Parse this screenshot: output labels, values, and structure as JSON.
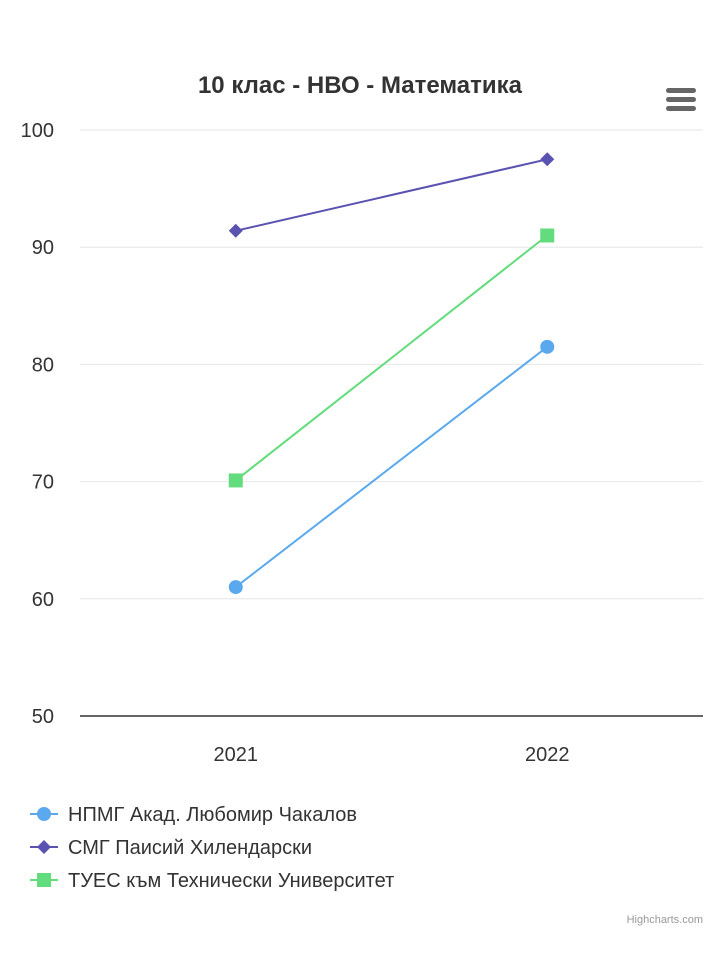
{
  "chart_data": {
    "type": "line",
    "title": "10 клас - НВО - Математика",
    "categories": [
      "2021",
      "2022"
    ],
    "ylim": [
      50,
      100
    ],
    "yticks": [
      50,
      60,
      70,
      80,
      90,
      100
    ],
    "grid": true,
    "legend_position": "bottom-left",
    "series": [
      {
        "name": "НПМГ Акад. Любомир Чакалов",
        "values": [
          61.0,
          81.5
        ],
        "color": "#5aa9ee",
        "marker": "circle"
      },
      {
        "name": "СМГ Паисий Хилендарски",
        "values": [
          91.4,
          97.5
        ],
        "color": "#5a52b0",
        "marker": "diamond"
      },
      {
        "name": "ТУЕС към Технически Университет",
        "values": [
          70.1,
          91.0
        ],
        "color": "#62dc7c",
        "marker": "square"
      }
    ]
  },
  "credits": "Highcharts.com",
  "menu_icon": "hamburger-menu-icon"
}
